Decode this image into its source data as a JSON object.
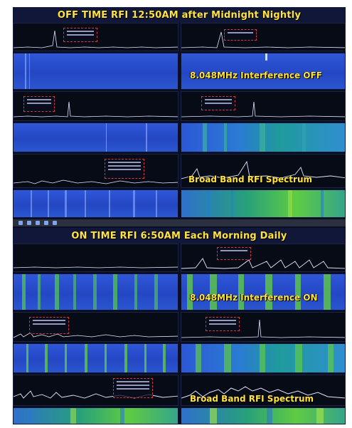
{
  "top": {
    "title": "OFF TIME RFI 12:50AM after Midnight Nightly",
    "waterfall_caption": "8.048MHz Interference OFF",
    "spectrum_caption": "Broad Band RFI Spectrum"
  },
  "bottom": {
    "title": "ON TIME RFI 6:50AM Each Morning Daily",
    "waterfall_caption": "8.048MHz Interference ON",
    "spectrum_caption": "Broad Band RFI Spectrum"
  },
  "colors": {
    "caption": "#ffe23a",
    "banner_bg": "#101738",
    "trace": "#dfe6ff",
    "readout_border": "#d23a3a",
    "waterfall_blue": "#2b50cf",
    "waterfall_green": "#5fcb42"
  },
  "icons": {
    "taskbar": [
      "window-icon",
      "app-icon",
      "app-icon",
      "app-icon",
      "app-icon"
    ]
  }
}
